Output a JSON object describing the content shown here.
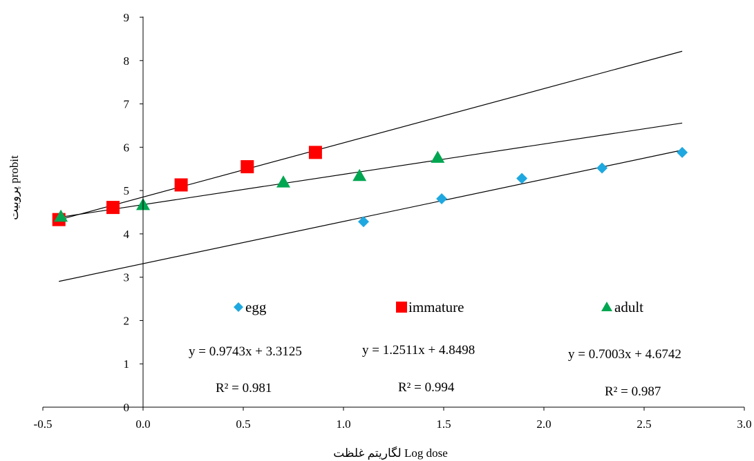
{
  "chart_data": {
    "type": "scatter",
    "xlabel": "لگاریتم غلظت Log dose",
    "ylabel": "پروبیت probit",
    "xlim": [
      -0.5,
      3.0
    ],
    "ylim": [
      0,
      9
    ],
    "xticks": [
      "-0.5",
      "0.0",
      "0.5",
      "1.0",
      "1.5",
      "2.0",
      "2.5",
      "3.0"
    ],
    "yticks": [
      "0",
      "1",
      "2",
      "3",
      "4",
      "5",
      "6",
      "7",
      "8",
      "9"
    ],
    "grid": false,
    "legend_position": "inside-middle",
    "series": [
      {
        "name": "egg",
        "marker": "diamond",
        "color": "#1fa8e0",
        "x": [
          1.1,
          1.49,
          1.89,
          2.29,
          2.69
        ],
        "y": [
          4.28,
          4.81,
          5.28,
          5.52,
          5.88
        ],
        "trendline": {
          "slope": 0.9743,
          "intercept": 3.3125,
          "x_range": [
            -0.42,
            2.69
          ]
        },
        "equation": "y = 0.9743x + 3.3125",
        "r2": "R² = 0.981"
      },
      {
        "name": "immature",
        "marker": "square",
        "color": "#ff0000",
        "x": [
          -0.42,
          -0.15,
          0.19,
          0.52,
          0.86
        ],
        "y": [
          4.33,
          4.61,
          5.13,
          5.55,
          5.88
        ],
        "trendline": {
          "slope": 1.2511,
          "intercept": 4.8498,
          "x_range": [
            -0.42,
            2.69
          ]
        },
        "equation": "y = 1.2511x + 4.8498",
        "r2": "R² = 0.994"
      },
      {
        "name": "adult",
        "marker": "triangle",
        "color": "#00a651",
        "x": [
          -0.41,
          0.0,
          0.7,
          1.08,
          1.47
        ],
        "y": [
          4.4,
          4.67,
          5.19,
          5.34,
          5.76
        ],
        "trendline": {
          "slope": 0.7003,
          "intercept": 4.6742,
          "x_range": [
            -0.42,
            2.69
          ]
        },
        "equation": "y = 0.7003x + 4.6742",
        "r2": "R² = 0.987"
      }
    ]
  }
}
